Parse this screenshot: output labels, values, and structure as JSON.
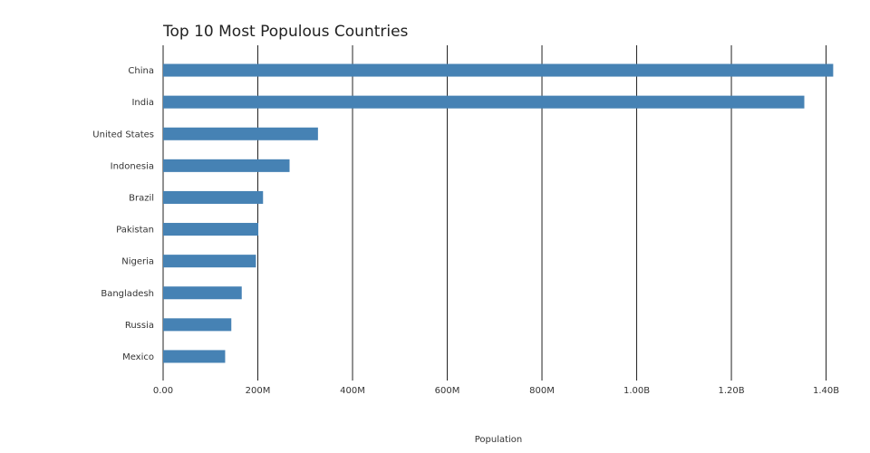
{
  "chart_data": {
    "type": "bar",
    "orientation": "horizontal",
    "title": "Top 10 Most Populous Countries",
    "xlabel": "Population",
    "ylabel": "",
    "categories": [
      "China",
      "India",
      "United States",
      "Indonesia",
      "Brazil",
      "Pakistan",
      "Nigeria",
      "Bangladesh",
      "Russia",
      "Mexico"
    ],
    "values": [
      1415000000,
      1354000000,
      327000000,
      267000000,
      211000000,
      201000000,
      196000000,
      166000000,
      144000000,
      131000000
    ],
    "xlim": [
      0,
      1420000000
    ],
    "x_ticks": [
      {
        "value": 0,
        "label": "0.00"
      },
      {
        "value": 200000000,
        "label": "200M"
      },
      {
        "value": 400000000,
        "label": "400M"
      },
      {
        "value": 600000000,
        "label": "600M"
      },
      {
        "value": 800000000,
        "label": "800M"
      },
      {
        "value": 1000000000,
        "label": "1.00B"
      },
      {
        "value": 1200000000,
        "label": "1.20B"
      },
      {
        "value": 1400000000,
        "label": "1.40B"
      }
    ],
    "bar_color": "#4682b4",
    "grid_color": "#222222",
    "grid": true,
    "legend": "none"
  }
}
